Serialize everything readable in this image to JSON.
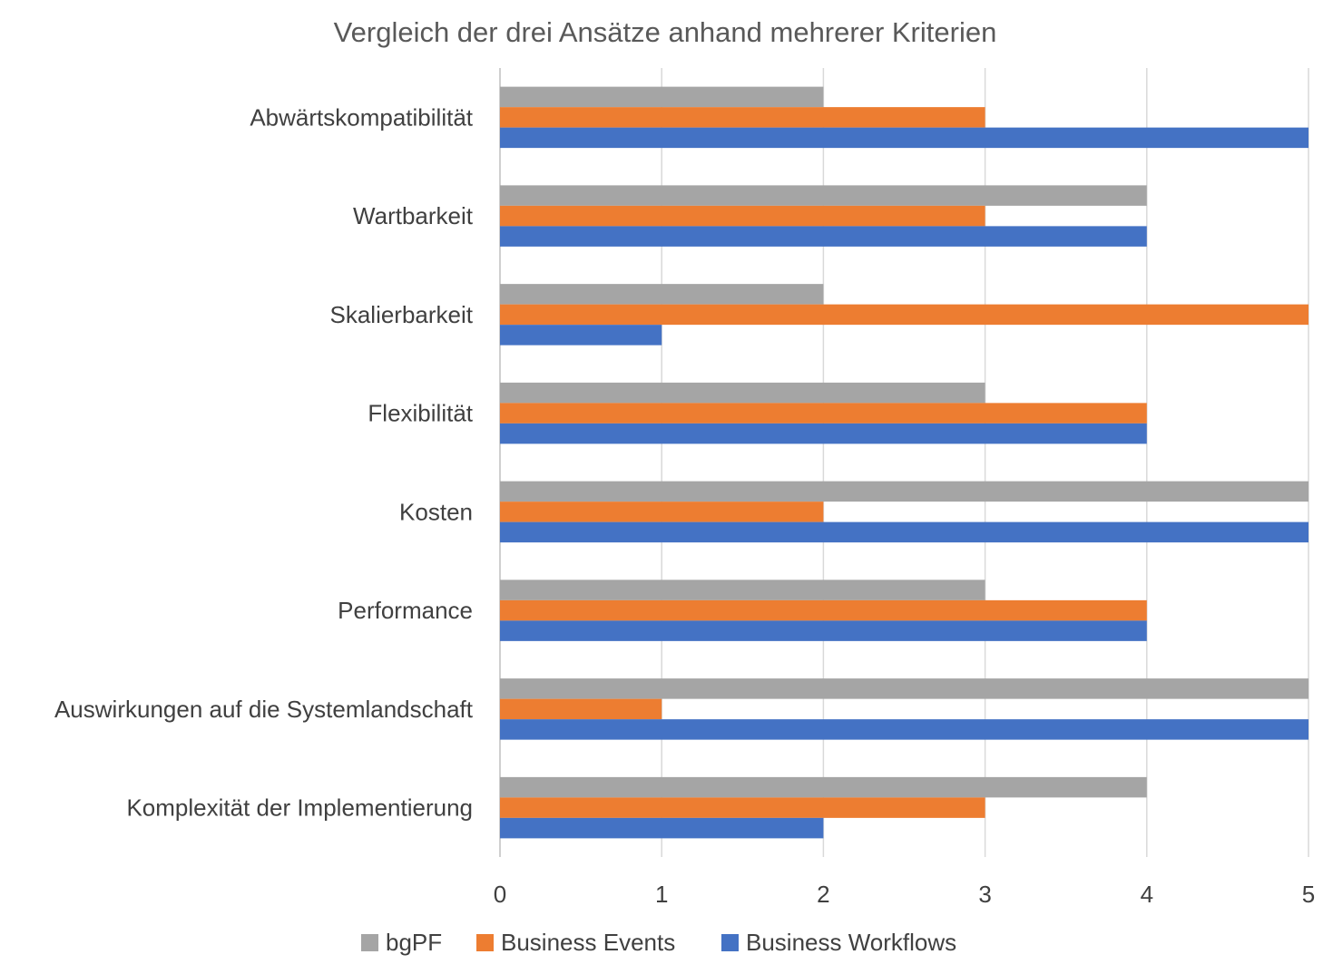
{
  "chart_data": {
    "type": "bar",
    "orientation": "horizontal",
    "title": "Vergleich der drei Ansätze anhand mehrerer Kriterien",
    "xlabel": "",
    "ylabel": "",
    "xlim": [
      0,
      5
    ],
    "ticks": [
      "0",
      "1",
      "2",
      "3",
      "4",
      "5"
    ],
    "grid": true,
    "legend_position": "bottom",
    "categories": [
      "Abwärtskompatibilität",
      "Wartbarkeit",
      "Skalierbarkeit",
      "Flexibilität",
      "Kosten",
      "Performance",
      "Auswirkungen auf die Systemlandschaft",
      "Komplexität der Implementierung"
    ],
    "series": [
      {
        "name": "bgPF",
        "color": "#a5a5a5",
        "values": [
          2,
          4,
          2,
          3,
          5,
          3,
          5,
          4
        ]
      },
      {
        "name": "Business Events",
        "color": "#ed7d31",
        "values": [
          3,
          3,
          5,
          4,
          2,
          4,
          1,
          3
        ]
      },
      {
        "name": "Business Workflows",
        "color": "#4472c4",
        "values": [
          5,
          4,
          1,
          4,
          5,
          4,
          5,
          2
        ]
      }
    ]
  }
}
